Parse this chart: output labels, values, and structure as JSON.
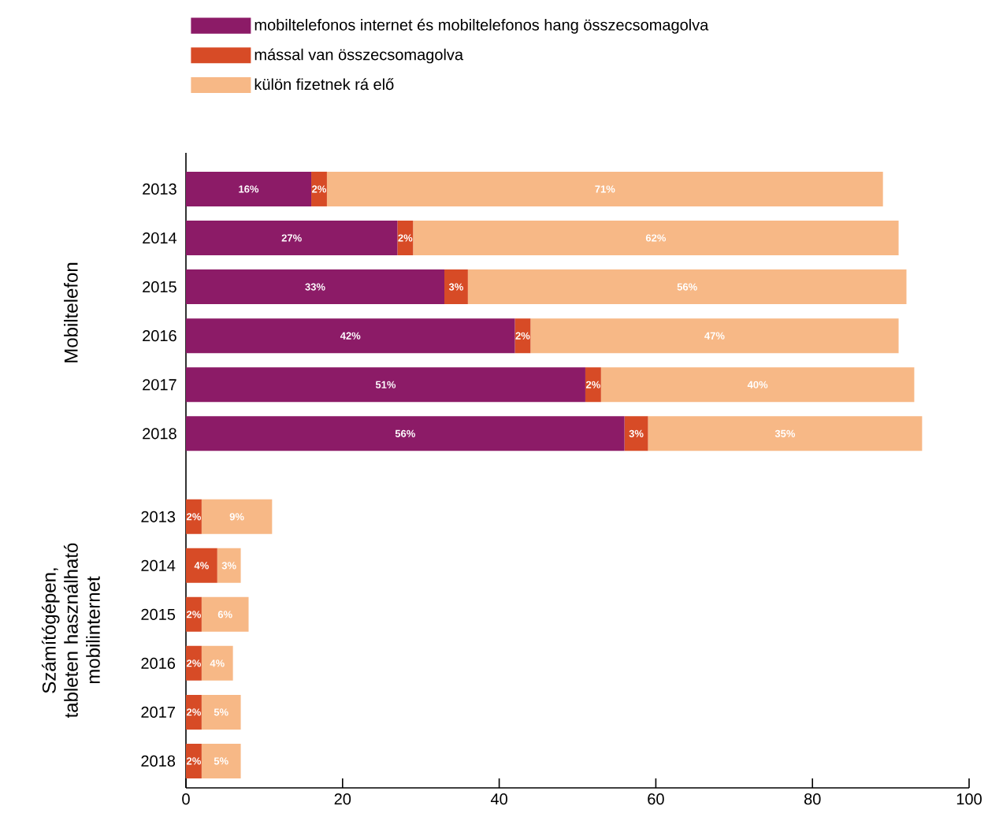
{
  "chart_data": [
    {
      "type": "bar",
      "orientation": "horizontal",
      "stacked": true,
      "ylabel": "Mobiltelefon",
      "categories": [
        "2013",
        "2014",
        "2015",
        "2016",
        "2017",
        "2018"
      ],
      "xlim": [
        0,
        100
      ],
      "tick_labels": "y",
      "legend": "top",
      "series": [
        {
          "name": "mobiltelefonos internet és mobiltelefonos hang összecsomagolva",
          "color": "#8c1b67",
          "values": [
            16,
            27,
            33,
            42,
            51,
            56
          ],
          "value_labels": [
            "16%",
            "27%",
            "33%",
            "42%",
            "51%",
            "56%"
          ]
        },
        {
          "name": "mással van összecsomagolva",
          "color": "#d74b26",
          "values": [
            2,
            2,
            3,
            2,
            2,
            3
          ],
          "value_labels": [
            "2%",
            "2%",
            "3%",
            "2%",
            "2%",
            "3%"
          ]
        },
        {
          "name": "külön fizetnek rá elő",
          "color": "#f7b886",
          "values": [
            71,
            62,
            56,
            47,
            40,
            35
          ],
          "value_labels": [
            "71%",
            "62%",
            "56%",
            "47%",
            "40%",
            "35%"
          ]
        }
      ]
    },
    {
      "type": "bar",
      "orientation": "horizontal",
      "stacked": true,
      "ylabel": "Számítógépen, tableten használható mobilinternet",
      "categories": [
        "2013",
        "2014",
        "2015",
        "2016",
        "2017",
        "2018"
      ],
      "xlim": [
        0,
        100
      ],
      "xticks": [
        0,
        20,
        40,
        60,
        80,
        100
      ],
      "series": [
        {
          "color": "#d74b26",
          "values": [
            2,
            4,
            2,
            2,
            2,
            2
          ],
          "value_labels": [
            "2%",
            "4%",
            "2%",
            "2%",
            "2%",
            "2%"
          ]
        },
        {
          "color": "#f7b886",
          "values": [
            9,
            3,
            6,
            4,
            5,
            5
          ],
          "value_labels": [
            "9%",
            "3%",
            "6%",
            "4%",
            "5%",
            "5%"
          ]
        }
      ]
    }
  ]
}
